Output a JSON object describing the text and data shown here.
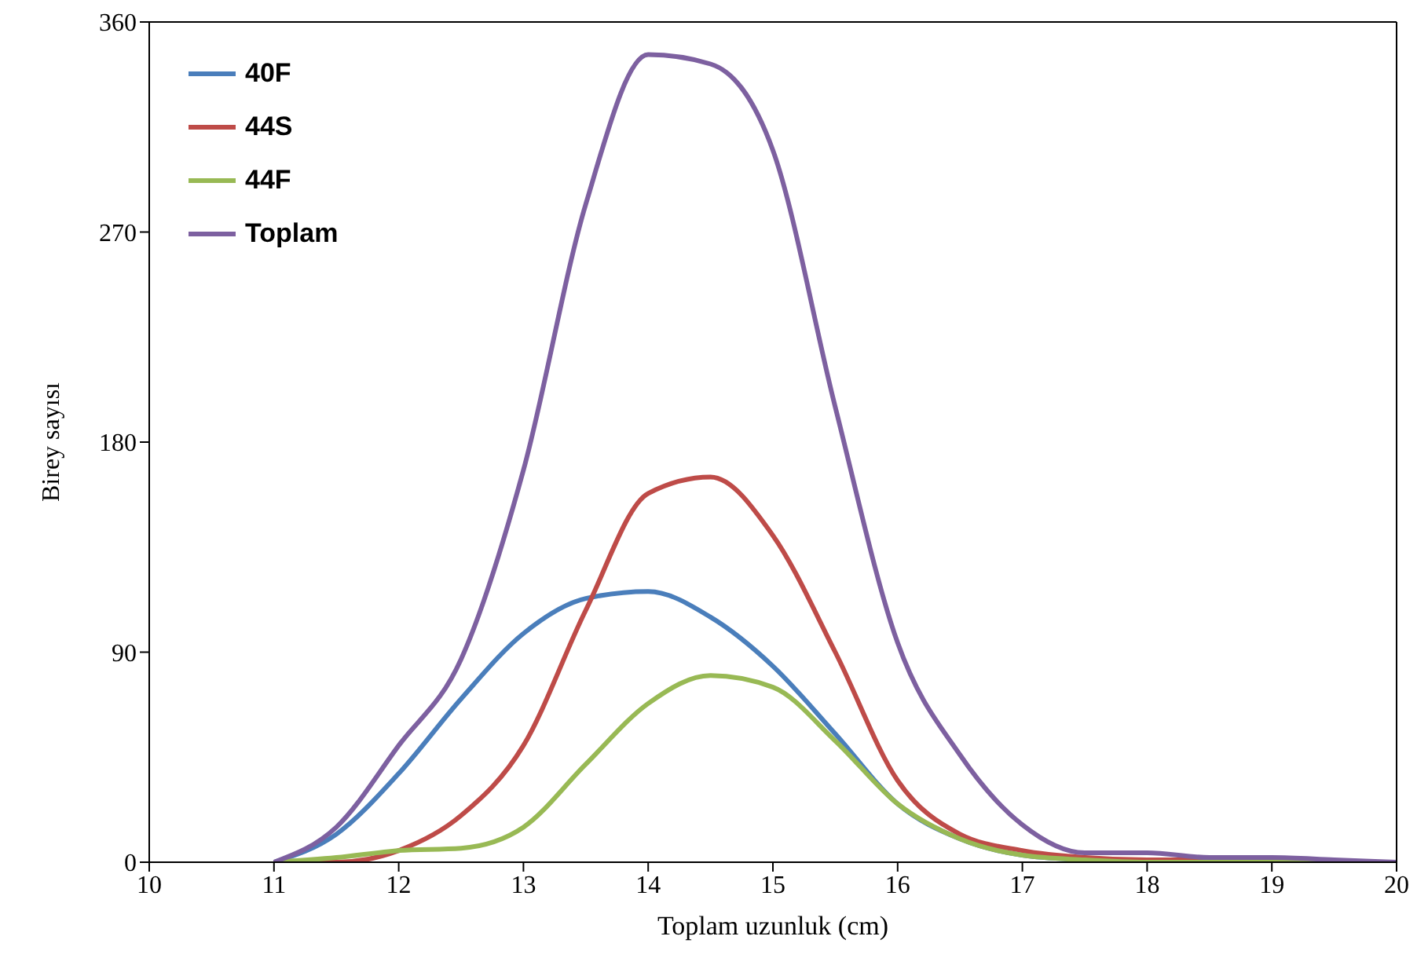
{
  "chart_data": {
    "type": "line",
    "xlabel": "Toplam uzunluk (cm)",
    "ylabel": "Birey sayısı",
    "x": [
      11,
      11.5,
      12,
      12.5,
      13,
      13.5,
      14,
      14.5,
      15,
      15.5,
      16,
      16.5,
      17,
      17.5,
      18,
      18.5,
      19,
      19.5,
      20
    ],
    "series": [
      {
        "name": "40F",
        "color": "#4a7ebb",
        "values": [
          0,
          12,
          38,
          70,
          98,
          113,
          116,
          105,
          84,
          55,
          25,
          10,
          3,
          1,
          0,
          0,
          0,
          0,
          0
        ]
      },
      {
        "name": "44S",
        "color": "#be4b48",
        "values": [
          0,
          0,
          5,
          20,
          50,
          108,
          158,
          165,
          140,
          90,
          35,
          12,
          5,
          2,
          1,
          1,
          1,
          null,
          null
        ]
      },
      {
        "name": "44F",
        "color": "#98b954",
        "values": [
          0,
          2,
          5,
          6,
          15,
          42,
          68,
          80,
          75,
          52,
          25,
          10,
          3,
          1,
          0,
          0,
          0,
          0,
          0
        ]
      },
      {
        "name": "Toplam",
        "color": "#7d60a0",
        "values": [
          0,
          15,
          50,
          87,
          168,
          282,
          346,
          342,
          305,
          195,
          94,
          46,
          16,
          4,
          4,
          2,
          2,
          1,
          0
        ]
      }
    ],
    "xlim": [
      10,
      20
    ],
    "xticks": [
      10,
      11,
      12,
      13,
      14,
      15,
      16,
      17,
      18,
      19,
      20
    ],
    "ylim": [
      0,
      360
    ],
    "yticks": [
      0,
      90,
      180,
      270,
      360
    ],
    "grid": false,
    "legend": "top left",
    "marker": "none",
    "line_style": "solid"
  }
}
